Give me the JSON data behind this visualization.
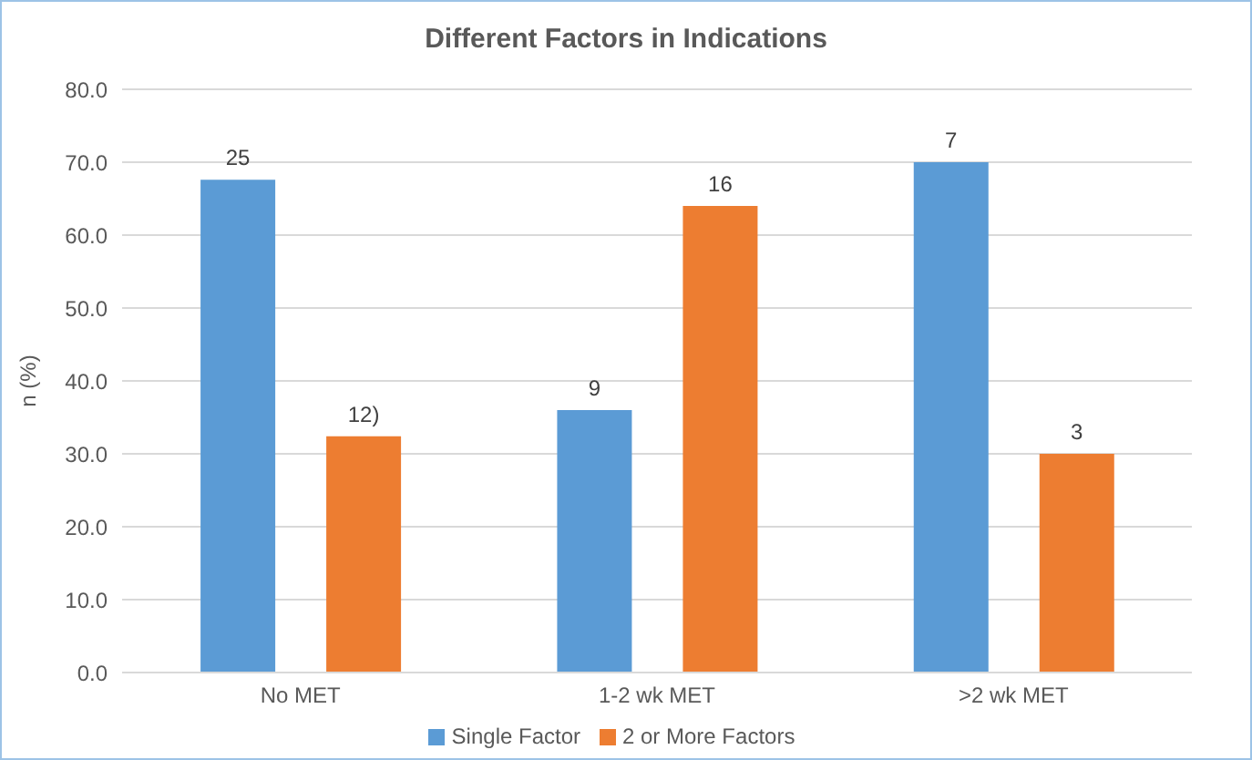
{
  "chart_data": {
    "type": "bar",
    "title": "Different Factors in Indications",
    "ylabel": "n (%)",
    "categories": [
      "No MET",
      "1-2 wk MET",
      ">2 wk MET"
    ],
    "series": [
      {
        "name": "Single Factor",
        "color": "#5b9bd5",
        "values": [
          67.6,
          36.0,
          70.0
        ]
      },
      {
        "name": "2 or More Factors",
        "color": "#ed7d31",
        "values": [
          32.4,
          64.0,
          30.0
        ]
      }
    ],
    "annotations": [
      "25",
      "12)",
      "9",
      "16",
      "7",
      "3"
    ],
    "ylim": [
      0,
      80
    ],
    "yticks": [
      {
        "value": 0,
        "label": "0.0"
      },
      {
        "value": 10,
        "label": "10.0"
      },
      {
        "value": 20,
        "label": "20.0"
      },
      {
        "value": 30,
        "label": "30.0"
      },
      {
        "value": 40,
        "label": "40.0"
      },
      {
        "value": 50,
        "label": "50.0"
      },
      {
        "value": 60,
        "label": "60.0"
      },
      {
        "value": 70,
        "label": "70.0"
      },
      {
        "value": 80,
        "label": "80.0"
      }
    ],
    "grid": "y",
    "legend": "bottom"
  }
}
